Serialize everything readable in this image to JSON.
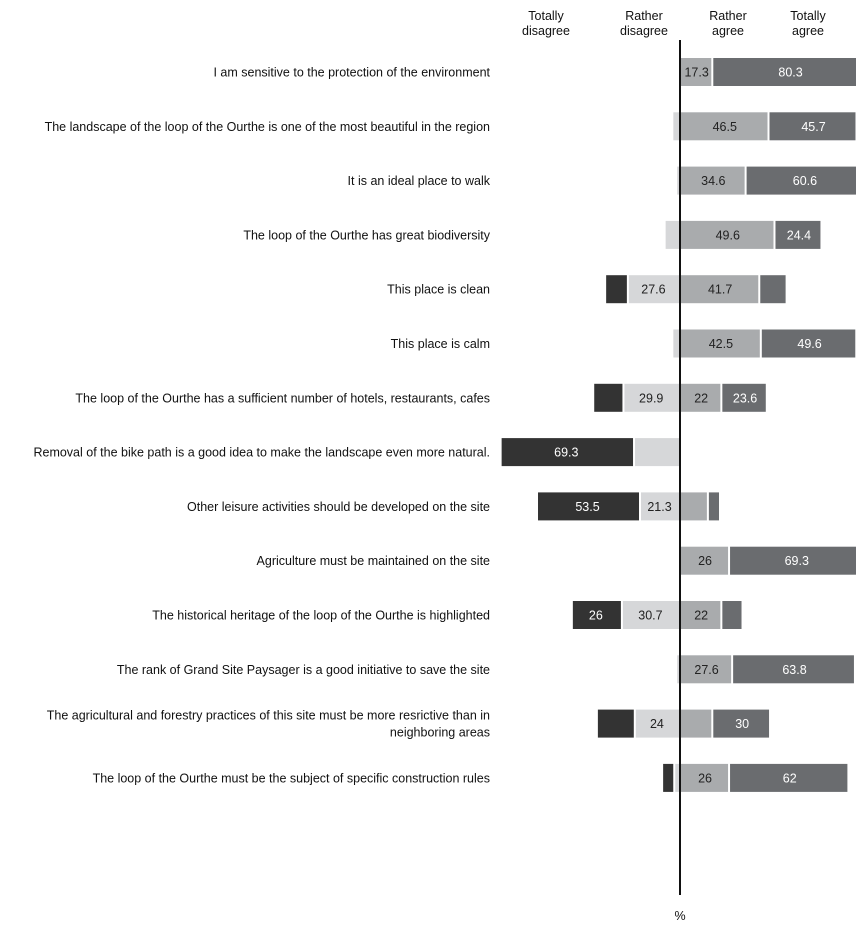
{
  "chart_data": {
    "type": "bar",
    "orientation": "horizontal",
    "stacking": "diverging",
    "x_unit_label": "%",
    "legend_placement": "top",
    "series": [
      {
        "key": "td",
        "name": "Totally disagree",
        "header_lines": [
          "Totally",
          "disagree"
        ],
        "color": "#333333",
        "text_color": "#ffffff"
      },
      {
        "key": "rd",
        "name": "Rather disagree",
        "header_lines": [
          "Rather",
          "disagree"
        ],
        "color": "#d6d7d9",
        "text_color": "#222222"
      },
      {
        "key": "ra",
        "name": "Rather agree",
        "header_lines": [
          "Rather",
          "agree"
        ],
        "color": "#a9abad",
        "text_color": "#222222"
      },
      {
        "key": "ta",
        "name": "Totally agree",
        "header_lines": [
          "Totally",
          "agree"
        ],
        "color": "#6a6c6f",
        "text_color": "#ffffff"
      }
    ],
    "categories": [
      {
        "lines": [
          "I am sensitive to the protection of the environment"
        ],
        "td": 0,
        "rd": 0.5,
        "ra": 17.3,
        "ta": 80.3,
        "labels": {
          "ra": "17.3",
          "ta": "80.3"
        }
      },
      {
        "lines": [
          "The landscape of the loop of the Ourthe is one of the most beautiful in the region"
        ],
        "td": 0,
        "rd": 4.5,
        "ra": 46.5,
        "ta": 45.7,
        "labels": {
          "ra": "46.5",
          "ta": "45.7"
        }
      },
      {
        "lines": [
          "It is an ideal place to walk"
        ],
        "td": 0,
        "rd": 2.5,
        "ra": 34.6,
        "ta": 60.6,
        "labels": {
          "ra": "34.6",
          "ta": "60.6"
        }
      },
      {
        "lines": [
          "The loop of the Ourthe has great biodiversity"
        ],
        "td": 0,
        "rd": 8.5,
        "ra": 49.6,
        "ta": 24.4,
        "labels": {
          "ra": "49.6",
          "ta": "24.4"
        }
      },
      {
        "lines": [
          "This place is clean"
        ],
        "td": 11.8,
        "rd": 27.6,
        "ra": 41.7,
        "ta": 14.2,
        "labels": {
          "rd": "27.6",
          "ra": "41.7"
        }
      },
      {
        "lines": [
          "This place is calm"
        ],
        "td": 0,
        "rd": 4.5,
        "ra": 42.5,
        "ta": 49.6,
        "labels": {
          "ra": "42.5",
          "ta": "49.6"
        }
      },
      {
        "lines": [
          "The loop of the Ourthe has a sufficient number of hotels, restaurants, cafes"
        ],
        "td": 15.7,
        "rd": 29.9,
        "ra": 22,
        "ta": 23.6,
        "labels": {
          "rd": "29.9",
          "ra": "22",
          "ta": "23.6"
        }
      },
      {
        "lines": [
          "Removal of the bike path is a good idea to make the landscape even more natural."
        ],
        "td": 69.3,
        "rd": 24.4,
        "ra": 0.8,
        "ta": 0,
        "labels": {
          "td": "69.3"
        }
      },
      {
        "lines": [
          "Other leisure activities should be developed on the site"
        ],
        "td": 53.5,
        "rd": 21.3,
        "ra": 15.0,
        "ta": 6.3,
        "labels": {
          "td": "53.5",
          "rd": "21.3"
        }
      },
      {
        "lines": [
          "Agriculture must be maintained on the site"
        ],
        "td": 0,
        "rd": 0,
        "ra": 26,
        "ta": 69.3,
        "labels": {
          "ra": "26",
          "ta": "69.3"
        }
      },
      {
        "lines": [
          "The historical heritage of the loop of the Ourthe is highlighted"
        ],
        "td": 26,
        "rd": 30.7,
        "ra": 22,
        "ta": 11.0,
        "labels": {
          "td": "26",
          "rd": "30.7",
          "ra": "22"
        }
      },
      {
        "lines": [
          "The rank of Grand Site Paysager is a good initiative to save the site"
        ],
        "td": 0,
        "rd": 2.5,
        "ra": 27.6,
        "ta": 63.8,
        "labels": {
          "ra": "27.6",
          "ta": "63.8"
        }
      },
      {
        "lines": [
          "The agricultural and forestry practices of this site must be more resrictive than in",
          "neighboring areas"
        ],
        "td": 19.7,
        "rd": 24,
        "ra": 17.3,
        "ta": 30,
        "labels": {
          "rd": "24",
          "ta": "30"
        }
      },
      {
        "lines": [
          "The loop of the Ourthe must be the subject of specific construction rules"
        ],
        "td": 6.3,
        "rd": 3.5,
        "ra": 26,
        "ta": 62,
        "labels": {
          "ra": "26",
          "ta": "62"
        }
      }
    ]
  }
}
